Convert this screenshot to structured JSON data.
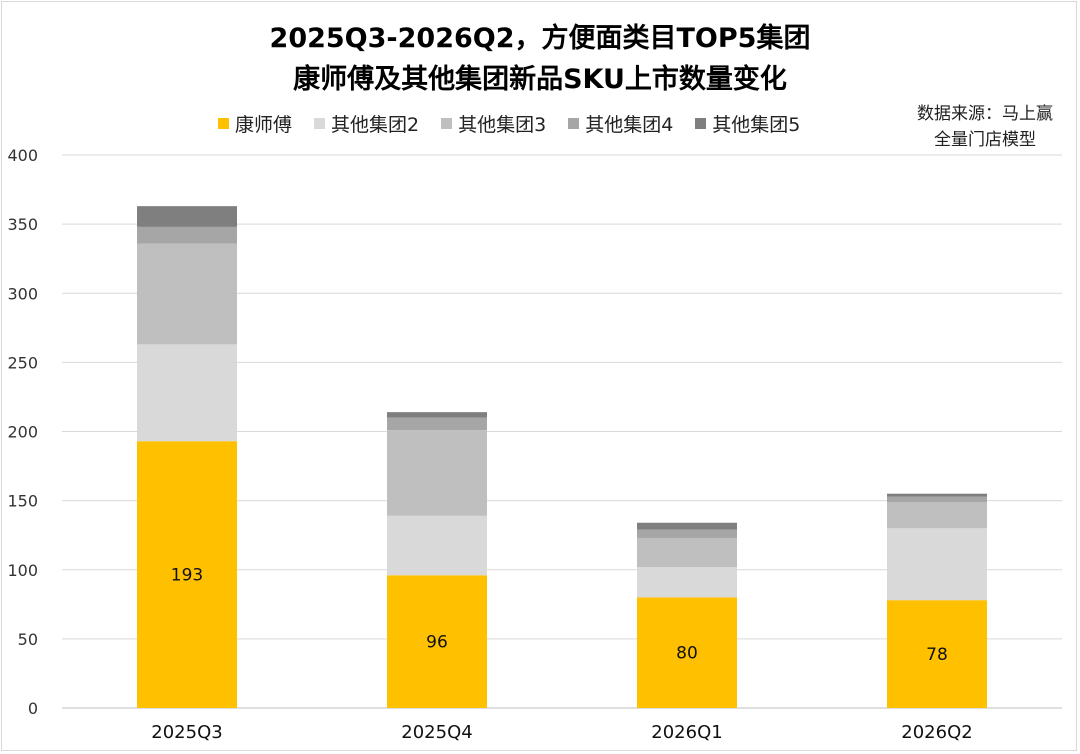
{
  "chart_data": {
    "type": "bar",
    "stacked": true,
    "title": "2025Q3-2026Q2，方便面类目TOP5集团",
    "subtitle": "康师傅及其他集团新品SKU上市数量变化",
    "source_line1": "数据来源：马上赢",
    "source_line2": "全量门店模型",
    "categories": [
      "2025Q3",
      "2025Q4",
      "2026Q1",
      "2026Q2"
    ],
    "ylim": [
      0,
      400
    ],
    "yticks": [
      0,
      50,
      100,
      150,
      200,
      250,
      300,
      350,
      400
    ],
    "grid": true,
    "legend_position": "top",
    "series": [
      {
        "name": "康师傅",
        "color": "#FFC000",
        "values": [
          193,
          96,
          80,
          78
        ],
        "show_labels": true
      },
      {
        "name": "其他集团2",
        "color": "#D9D9D9",
        "values": [
          70,
          43,
          22,
          52
        ],
        "show_labels": false
      },
      {
        "name": "其他集团3",
        "color": "#BFBFBF",
        "values": [
          73,
          62,
          21,
          19
        ],
        "show_labels": false
      },
      {
        "name": "其他集团4",
        "color": "#A6A6A6",
        "values": [
          12,
          9,
          6,
          4
        ],
        "show_labels": false
      },
      {
        "name": "其他集团5",
        "color": "#7F7F7F",
        "values": [
          15,
          4,
          5,
          2
        ],
        "show_labels": false
      }
    ]
  }
}
